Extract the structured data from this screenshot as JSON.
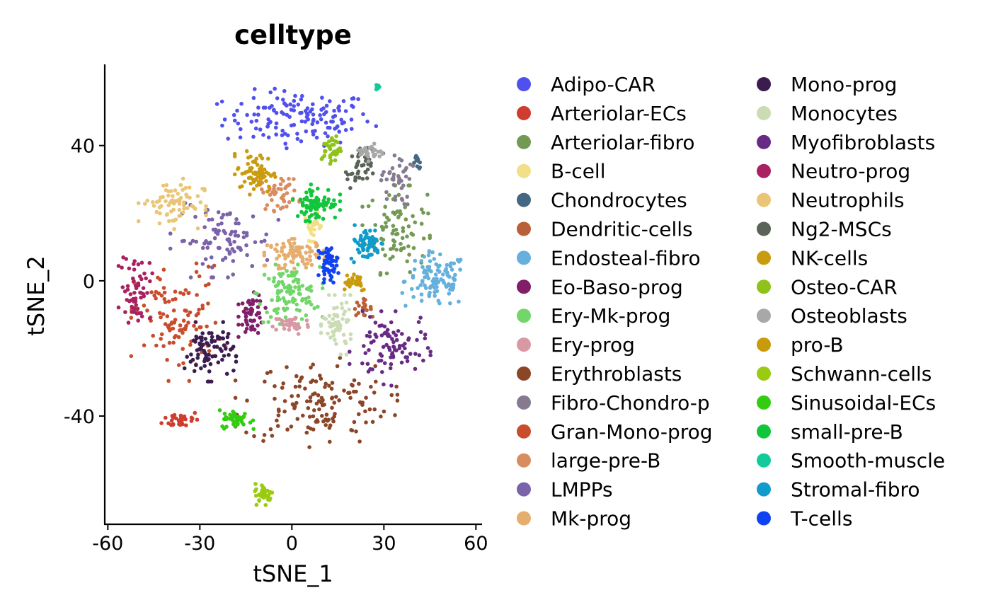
{
  "chart_data": {
    "type": "scatter",
    "title": "celltype",
    "xlabel": "tSNE_1",
    "ylabel": "tSNE_2",
    "xlim": [
      -61,
      62
    ],
    "ylim": [
      -72,
      64
    ],
    "x_ticks": [
      -60,
      -30,
      0,
      30,
      60
    ],
    "y_ticks": [
      -40,
      0,
      40
    ],
    "x_tick_labels": [
      "-60",
      "-30",
      "0",
      "30",
      "60"
    ],
    "y_tick_labels": [
      "-40",
      "0",
      "40"
    ],
    "grid": false,
    "legend_position": "right",
    "series": [
      {
        "name": "Adipo-CAR",
        "color": "#5050EE",
        "clusters": [
          {
            "cx": 2,
            "cy": 48,
            "sx": 12,
            "sy": 4,
            "n": 140
          }
        ]
      },
      {
        "name": "Arteriolar-ECs",
        "color": "#D03C30",
        "clusters": [
          {
            "cx": -36,
            "cy": -41,
            "sx": 3,
            "sy": 1.3,
            "n": 35
          }
        ]
      },
      {
        "name": "Arteriolar-fibro",
        "color": "#739A55",
        "clusters": [
          {
            "cx": 34,
            "cy": 15,
            "sx": 5,
            "sy": 6,
            "n": 90
          }
        ]
      },
      {
        "name": "B-cell",
        "color": "#F2E088",
        "clusters": [
          {
            "cx": 7,
            "cy": 16,
            "sx": 1.5,
            "sy": 2,
            "n": 25
          }
        ]
      },
      {
        "name": "Chondrocytes",
        "color": "#456882",
        "clusters": [
          {
            "cx": 41,
            "cy": 35,
            "sx": 0.8,
            "sy": 1,
            "n": 12
          }
        ]
      },
      {
        "name": "Dendritic-cells",
        "color": "#B86138",
        "clusters": [
          {
            "cx": 23,
            "cy": -8,
            "sx": 1.5,
            "sy": 1.2,
            "n": 20
          }
        ]
      },
      {
        "name": "Endosteal-fibro",
        "color": "#65B0DC",
        "clusters": [
          {
            "cx": 47,
            "cy": 0,
            "sx": 5,
            "sy": 4,
            "n": 110
          }
        ]
      },
      {
        "name": "Eo-Baso-prog",
        "color": "#7F1F6A",
        "clusters": [
          {
            "cx": -13,
            "cy": -10,
            "sx": 2,
            "sy": 3,
            "n": 55
          }
        ]
      },
      {
        "name": "Ery-Mk-prog",
        "color": "#72D66A",
        "clusters": [
          {
            "cx": -1,
            "cy": -4,
            "sx": 5,
            "sy": 4,
            "n": 110
          }
        ]
      },
      {
        "name": "Ery-prog",
        "color": "#D898A4",
        "clusters": [
          {
            "cx": 0,
            "cy": -13,
            "sx": 3,
            "sy": 1.5,
            "n": 40
          }
        ]
      },
      {
        "name": "Erythroblasts",
        "color": "#8B4527",
        "clusters": [
          {
            "cx": 8,
            "cy": -36,
            "sx": 12,
            "sy": 6,
            "n": 140
          }
        ]
      },
      {
        "name": "Fibro-Chondro-p",
        "color": "#857A8F",
        "clusters": [
          {
            "cx": 34,
            "cy": 30,
            "sx": 2.5,
            "sy": 4,
            "n": 40
          }
        ]
      },
      {
        "name": "Gran-Mono-prog",
        "color": "#C94D2C",
        "clusters": [
          {
            "cx": -37,
            "cy": -12,
            "sx": 7,
            "sy": 8,
            "n": 110
          }
        ]
      },
      {
        "name": "large-pre-B",
        "color": "#D88C60",
        "clusters": [
          {
            "cx": -4,
            "cy": 26,
            "sx": 3,
            "sy": 2.5,
            "n": 45
          }
        ]
      },
      {
        "name": "LMPPs",
        "color": "#7A63A8",
        "clusters": [
          {
            "cx": -22,
            "cy": 12,
            "sx": 8,
            "sy": 5,
            "n": 90
          }
        ]
      },
      {
        "name": "Mk-prog",
        "color": "#E5AE6E",
        "clusters": [
          {
            "cx": 2,
            "cy": 8,
            "sx": 5,
            "sy": 2,
            "n": 90
          }
        ]
      },
      {
        "name": "Mono-prog",
        "color": "#3A1C4F",
        "clusters": [
          {
            "cx": -27,
            "cy": -21,
            "sx": 4,
            "sy": 4,
            "n": 85
          }
        ]
      },
      {
        "name": "Monocytes",
        "color": "#CBDCB5",
        "clusters": [
          {
            "cx": 15,
            "cy": -13,
            "sx": 2.5,
            "sy": 4,
            "n": 60
          }
        ]
      },
      {
        "name": "Myofibroblasts",
        "color": "#682B85",
        "clusters": [
          {
            "cx": 32,
            "cy": -20,
            "sx": 6,
            "sy": 5,
            "n": 90
          }
        ]
      },
      {
        "name": "Neutro-prog",
        "color": "#A92161",
        "clusters": [
          {
            "cx": -51,
            "cy": -2,
            "sx": 2.5,
            "sy": 5,
            "n": 60
          }
        ]
      },
      {
        "name": "Neutrophils",
        "color": "#E9C577",
        "clusters": [
          {
            "cx": -39,
            "cy": 23,
            "sx": 5,
            "sy": 3.5,
            "n": 75
          }
        ]
      },
      {
        "name": "Ng2-MSCs",
        "color": "#5A6358",
        "clusters": [
          {
            "cx": 22,
            "cy": 33,
            "sx": 2,
            "sy": 3,
            "n": 40
          }
        ]
      },
      {
        "name": "NK-cells",
        "color": "#C99C0F",
        "clusters": [
          {
            "cx": -12,
            "cy": 32,
            "sx": 3,
            "sy": 3,
            "n": 70
          }
        ]
      },
      {
        "name": "Osteo-CAR",
        "color": "#8FC21A",
        "clusters": [
          {
            "cx": 13,
            "cy": 39,
            "sx": 1.5,
            "sy": 2,
            "n": 40
          }
        ]
      },
      {
        "name": "Osteoblasts",
        "color": "#A8A8A8",
        "clusters": [
          {
            "cx": 26,
            "cy": 38,
            "sx": 2,
            "sy": 1.2,
            "n": 30
          }
        ]
      },
      {
        "name": "pro-B",
        "color": "#C99A0C",
        "clusters": [
          {
            "cx": 20,
            "cy": 0,
            "sx": 2.5,
            "sy": 1.5,
            "n": 30
          }
        ]
      },
      {
        "name": "Schwann-cells",
        "color": "#99CC11",
        "clusters": [
          {
            "cx": -9,
            "cy": -63,
            "sx": 1.5,
            "sy": 1.5,
            "n": 35
          }
        ]
      },
      {
        "name": "Sinusoidal-ECs",
        "color": "#33CC11",
        "clusters": [
          {
            "cx": -18,
            "cy": -41,
            "sx": 2.5,
            "sy": 1.3,
            "n": 45
          }
        ]
      },
      {
        "name": "small-pre-B",
        "color": "#11C63A",
        "clusters": [
          {
            "cx": 8,
            "cy": 23,
            "sx": 3.5,
            "sy": 2.5,
            "n": 80
          }
        ]
      },
      {
        "name": "Smooth-muscle",
        "color": "#11CC99",
        "clusters": [
          {
            "cx": 28,
            "cy": 57,
            "sx": 0.4,
            "sy": 0.5,
            "n": 6
          }
        ]
      },
      {
        "name": "Stromal-fibro",
        "color": "#0F9CCC",
        "clusters": [
          {
            "cx": 24,
            "cy": 11,
            "sx": 2.5,
            "sy": 2.5,
            "n": 60
          }
        ]
      },
      {
        "name": "T-cells",
        "color": "#1142F2",
        "clusters": [
          {
            "cx": 12,
            "cy": 5,
            "sx": 1.5,
            "sy": 2.5,
            "n": 50
          }
        ]
      }
    ]
  }
}
